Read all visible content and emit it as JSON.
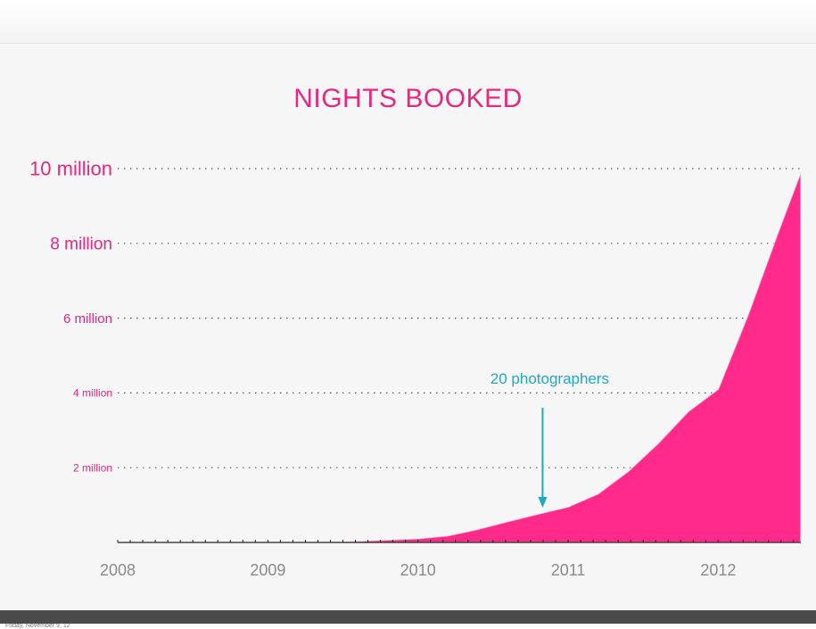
{
  "footer": {
    "timestamp": "Friday, November 9, 12"
  },
  "chart_data": {
    "type": "area",
    "title": "NIGHTS BOOKED",
    "xlabel": "",
    "ylabel": "",
    "x_tick_labels": [
      "2008",
      "2009",
      "2010",
      "2011",
      "2012"
    ],
    "y_tick_labels": [
      "2 million",
      "4 million",
      "6 million",
      "8 million",
      "10 million"
    ],
    "y_tick_values": [
      2000000,
      4000000,
      6000000,
      8000000,
      10000000
    ],
    "xlim": [
      2008,
      2012.55
    ],
    "ylim": [
      0,
      10000000
    ],
    "grid": true,
    "annotation": {
      "text": "20 photographers",
      "x": 2010.83,
      "y": 800000
    },
    "series": [
      {
        "x": [
          2008.0,
          2009.0,
          2009.5,
          2010.0,
          2010.2,
          2010.4,
          2010.6,
          2010.8,
          2011.0,
          2011.2,
          2011.4,
          2011.6,
          2011.8,
          2012.0,
          2012.2,
          2012.4,
          2012.55
        ],
        "values": [
          0,
          0,
          20000,
          100000,
          180000,
          350000,
          560000,
          760000,
          950000,
          1300000,
          1900000,
          2650000,
          3500000,
          4100000,
          6100000,
          8300000,
          9900000
        ]
      }
    ],
    "colors": {
      "area": "#ff2a8a",
      "title": "#e8277e",
      "annotation": "#1ea7c8",
      "axis_text": "#8a8a8a",
      "grid": "#555555"
    }
  }
}
